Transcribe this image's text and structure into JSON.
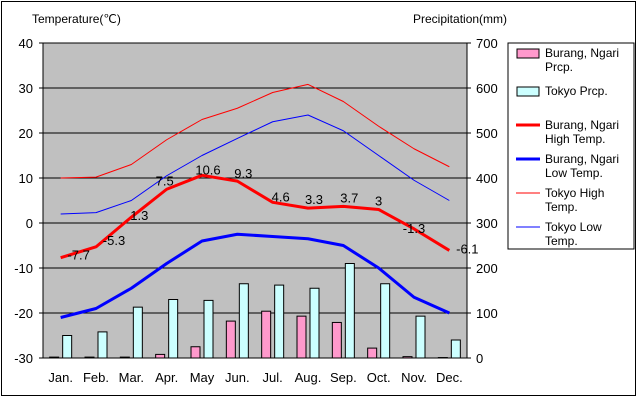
{
  "chart_data": {
    "type": "bar+line",
    "title_left": "Temperature(℃)",
    "title_right": "Precipitation(mm)",
    "categories": [
      "Jan.",
      "Feb.",
      "Mar.",
      "Apr.",
      "May",
      "Jun.",
      "Jul.",
      "Aug.",
      "Sep.",
      "Oct.",
      "Nov.",
      "Dec."
    ],
    "y_left": {
      "min": -30,
      "max": 40,
      "ticks": [
        40,
        30,
        20,
        10,
        0,
        -10,
        -20,
        -30
      ]
    },
    "y_right": {
      "min": 0,
      "max": 700,
      "ticks": [
        700,
        600,
        500,
        400,
        300,
        200,
        100,
        0
      ]
    },
    "grid": true,
    "legend_position": "right",
    "bars": [
      {
        "name": "Burang, Ngari Prcp.",
        "legend_lines": [
          "Burang, Ngari",
          "Prcp."
        ],
        "color": "#ff99cc",
        "values": [
          2,
          2,
          2,
          8,
          25,
          82,
          104,
          93,
          79,
          22,
          3,
          1
        ]
      },
      {
        "name": "Tokyo Prcp.",
        "legend_lines": [
          "Tokyo Prcp."
        ],
        "color": "#ccffff",
        "values": [
          50,
          58,
          113,
          130,
          128,
          165,
          162,
          155,
          210,
          165,
          93,
          40
        ]
      }
    ],
    "lines": [
      {
        "name": "Burang, Ngari High Temp.",
        "legend_lines": [
          "Burang, Ngari",
          "High Temp."
        ],
        "color": "#ff0000",
        "width": 3,
        "values": [
          -7.7,
          -5.3,
          1.3,
          7.5,
          10.6,
          9.3,
          4.6,
          3.3,
          3.7,
          3,
          -1.3,
          -6.1
        ],
        "labels": [
          "-7.7",
          "-5.3",
          "1.3",
          "7.5",
          "10.6",
          "9.3",
          "4.6",
          "3.3",
          "3.7",
          "3",
          "-1.3",
          "-6.1"
        ]
      },
      {
        "name": "Burang, Ngari Low Temp.",
        "legend_lines": [
          "Burang, Ngari",
          "Low Temp."
        ],
        "color": "#0000ff",
        "width": 3,
        "values": [
          -21,
          -19,
          -14.5,
          -9,
          -4,
          -2.5,
          -3,
          -3.5,
          -5,
          -10,
          -16.5,
          -20
        ]
      },
      {
        "name": "Tokyo High Temp.",
        "legend_lines": [
          "Tokyo High",
          "Temp."
        ],
        "color": "#ff0000",
        "width": 1,
        "values": [
          10,
          10.2,
          13,
          18.5,
          23,
          25.5,
          29,
          30.8,
          27,
          21.5,
          16.5,
          12.5
        ]
      },
      {
        "name": "Tokyo Low Temp.",
        "legend_lines": [
          "Tokyo Low",
          "Temp."
        ],
        "color": "#0000ff",
        "width": 1,
        "values": [
          2,
          2.3,
          5,
          10.5,
          15,
          18.8,
          22.5,
          24,
          20.5,
          15,
          9.5,
          5
        ]
      }
    ]
  }
}
